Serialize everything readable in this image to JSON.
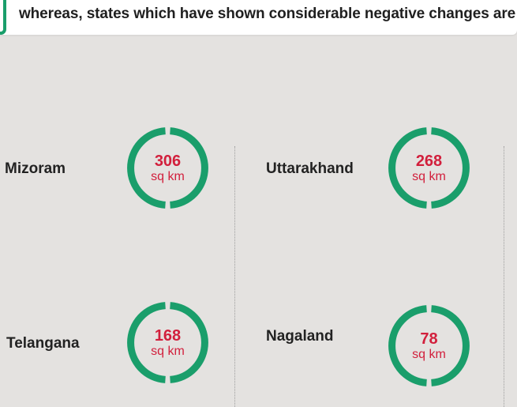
{
  "header": {
    "text": "whereas, states which have shown considerable negative changes are"
  },
  "states": [
    {
      "name": "Mizoram",
      "value": "306",
      "unit": "sq km"
    },
    {
      "name": "Uttarakhand",
      "value": "268",
      "unit": "sq km"
    },
    {
      "name": "Telangana",
      "value": "168",
      "unit": "sq km"
    },
    {
      "name": "Nagaland",
      "value": "78",
      "unit": "sq km"
    }
  ],
  "colors": {
    "ring": "#1a9e6b",
    "value": "#d21f3c",
    "background": "#e4e2e0"
  }
}
